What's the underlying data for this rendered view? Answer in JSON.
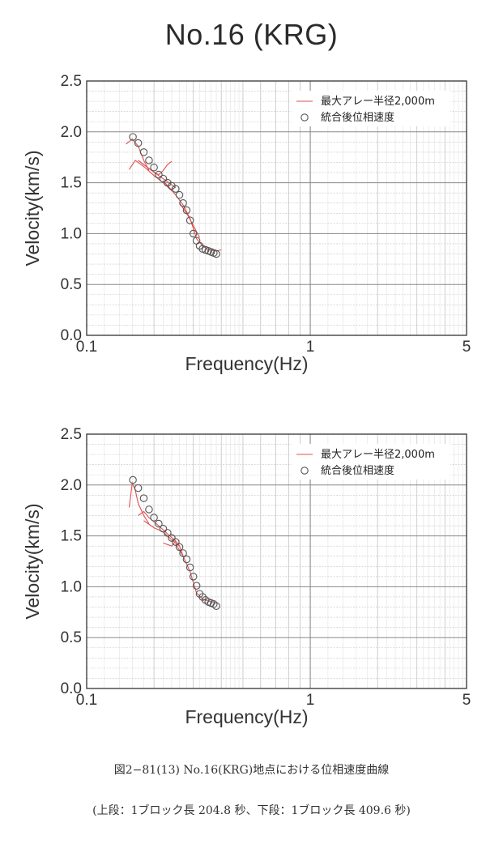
{
  "page": {
    "title": "No.16 (KRG)"
  },
  "caption": {
    "line1": "図2−81(13) No.16(KRG)地点における位相速度曲線",
    "line2": "(上段：1ブロック長 204.8 秒、下段：1ブロック長 409.6 秒)"
  },
  "chart_data": [
    {
      "type": "scatter",
      "title": "",
      "xlabel": "Frequency(Hz)",
      "ylabel": "Velocity(km/s)",
      "x_scale": "log",
      "xlim": [
        0.1,
        5
      ],
      "ylim": [
        0.0,
        2.5
      ],
      "x_ticks": [
        0.1,
        1,
        5
      ],
      "x_tick_labels": [
        "0.1",
        "1",
        "5"
      ],
      "y_ticks": [
        0.0,
        0.5,
        1.0,
        1.5,
        2.0,
        2.5
      ],
      "y_tick_labels": [
        "0.0",
        "0.5",
        "1.0",
        "1.5",
        "2.0",
        "2.5"
      ],
      "grid": true,
      "legend": {
        "position": "top-right"
      },
      "series": [
        {
          "name": "最大アレー半径2,000m",
          "kind": "line",
          "color": "#e05050",
          "segments": [
            {
              "x": [
                0.15,
                0.16,
                0.17,
                0.18,
                0.19
              ],
              "y": [
                1.88,
                1.93,
                1.86,
                1.72,
                1.62
              ]
            },
            {
              "x": [
                0.155,
                0.165,
                0.18,
                0.2,
                0.22,
                0.24
              ],
              "y": [
                1.63,
                1.72,
                1.66,
                1.57,
                1.5,
                1.42
              ]
            },
            {
              "x": [
                0.17,
                0.19,
                0.21,
                0.23,
                0.25
              ],
              "y": [
                1.72,
                1.64,
                1.57,
                1.51,
                1.45
              ]
            },
            {
              "x": [
                0.2,
                0.21,
                0.22,
                0.23,
                0.24
              ],
              "y": [
                1.6,
                1.58,
                1.62,
                1.68,
                1.71
              ]
            },
            {
              "x": [
                0.22,
                0.25,
                0.27,
                0.29,
                0.3,
                0.31,
                0.33,
                0.35,
                0.38,
                0.4
              ],
              "y": [
                1.52,
                1.38,
                1.28,
                1.15,
                1.05,
                0.95,
                0.88,
                0.84,
                0.83,
                0.84
              ]
            },
            {
              "x": [
                0.26,
                0.28,
                0.3,
                0.32
              ],
              "y": [
                1.3,
                1.2,
                1.08,
                0.96
              ]
            }
          ]
        },
        {
          "name": "統合後位相速度",
          "kind": "marker",
          "marker": "circle",
          "color": "#555555",
          "x": [
            0.161,
            0.17,
            0.18,
            0.19,
            0.2,
            0.21,
            0.22,
            0.23,
            0.24,
            0.25,
            0.26,
            0.27,
            0.28,
            0.29,
            0.3,
            0.31,
            0.32,
            0.33,
            0.34,
            0.35,
            0.36,
            0.37,
            0.38
          ],
          "y": [
            1.95,
            1.89,
            1.8,
            1.72,
            1.65,
            1.58,
            1.54,
            1.5,
            1.47,
            1.44,
            1.38,
            1.3,
            1.23,
            1.13,
            1.0,
            0.93,
            0.88,
            0.85,
            0.84,
            0.83,
            0.82,
            0.81,
            0.8
          ]
        }
      ]
    },
    {
      "type": "scatter",
      "title": "",
      "xlabel": "Frequency(Hz)",
      "ylabel": "Velocity(km/s)",
      "x_scale": "log",
      "xlim": [
        0.1,
        5
      ],
      "ylim": [
        0.0,
        2.5
      ],
      "x_ticks": [
        0.1,
        1,
        5
      ],
      "x_tick_labels": [
        "0.1",
        "1",
        "5"
      ],
      "y_ticks": [
        0.0,
        0.5,
        1.0,
        1.5,
        2.0,
        2.5
      ],
      "y_tick_labels": [
        "0.0",
        "0.5",
        "1.0",
        "1.5",
        "2.0",
        "2.5"
      ],
      "grid": true,
      "legend": {
        "position": "top-right"
      },
      "series": [
        {
          "name": "最大アレー半径2,000m",
          "kind": "line",
          "color": "#e05050",
          "segments": [
            {
              "x": [
                0.155,
                0.16,
                0.165,
                0.17,
                0.18,
                0.19
              ],
              "y": [
                1.78,
                2.02,
                1.95,
                1.82,
                1.7,
                1.62
              ]
            },
            {
              "x": [
                0.17,
                0.18,
                0.19,
                0.21,
                0.23,
                0.25
              ],
              "y": [
                1.7,
                1.74,
                1.68,
                1.6,
                1.52,
                1.45
              ]
            },
            {
              "x": [
                0.18,
                0.2,
                0.22,
                0.24,
                0.26
              ],
              "y": [
                1.65,
                1.58,
                1.54,
                1.46,
                1.4
              ]
            },
            {
              "x": [
                0.22,
                0.24,
                0.25,
                0.26,
                0.27
              ],
              "y": [
                1.43,
                1.4,
                1.45,
                1.4,
                1.3
              ]
            },
            {
              "x": [
                0.25,
                0.27,
                0.29,
                0.3,
                0.31,
                0.33,
                0.35,
                0.38
              ],
              "y": [
                1.42,
                1.3,
                1.15,
                1.04,
                0.94,
                0.88,
                0.86,
                0.84
              ]
            }
          ]
        },
        {
          "name": "統合後位相速度",
          "kind": "marker",
          "marker": "circle",
          "color": "#555555",
          "x": [
            0.161,
            0.17,
            0.18,
            0.19,
            0.2,
            0.21,
            0.22,
            0.23,
            0.24,
            0.25,
            0.26,
            0.27,
            0.28,
            0.29,
            0.3,
            0.31,
            0.32,
            0.33,
            0.34,
            0.35,
            0.36,
            0.37,
            0.38
          ],
          "y": [
            2.05,
            1.97,
            1.87,
            1.76,
            1.68,
            1.62,
            1.57,
            1.53,
            1.48,
            1.44,
            1.39,
            1.33,
            1.27,
            1.19,
            1.1,
            1.01,
            0.93,
            0.9,
            0.87,
            0.85,
            0.84,
            0.83,
            0.81
          ]
        }
      ]
    }
  ]
}
